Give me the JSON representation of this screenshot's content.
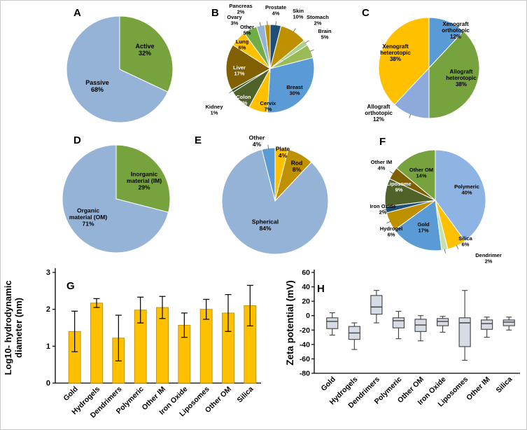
{
  "figure": {
    "background": "#ffffff",
    "panel_letters": [
      "A",
      "B",
      "C",
      "D",
      "E",
      "F",
      "G",
      "H"
    ]
  },
  "chart_data": [
    {
      "id": "A",
      "type": "pie",
      "slices": [
        {
          "label": "Active",
          "pct": 32,
          "color": "#77A33E"
        },
        {
          "label": "Passive",
          "pct": 68,
          "color": "#95B3D7"
        }
      ]
    },
    {
      "id": "B",
      "type": "pie",
      "slices": [
        {
          "label": "Prostate",
          "pct": 4,
          "color": "#1F4E79"
        },
        {
          "label": "Skin",
          "pct": 10,
          "color": "#BF9000"
        },
        {
          "label": "Stomach",
          "pct": 2,
          "color": "#A9D18E"
        },
        {
          "label": "Brain",
          "pct": 5,
          "color": "#9BBB59"
        },
        {
          "label": "Breast",
          "pct": 30,
          "color": "#5B9BD5"
        },
        {
          "label": "Cervix",
          "pct": 7,
          "color": "#FFC000"
        },
        {
          "label": "Colon",
          "pct": 8,
          "color": "#4F6228"
        },
        {
          "label": "Kidney",
          "pct": 1,
          "color": "#375623"
        },
        {
          "label": "Liver",
          "pct": 17,
          "color": "#806000"
        },
        {
          "label": "Lung",
          "pct": 6,
          "color": "#FFC000"
        },
        {
          "label": "Other",
          "pct": 5,
          "color": "#70AD47"
        },
        {
          "label": "Ovary",
          "pct": 3,
          "color": "#95B3D7"
        },
        {
          "label": "Pancreas",
          "pct": 2,
          "color": "#BF9000"
        }
      ]
    },
    {
      "id": "C",
      "type": "pie",
      "slices": [
        {
          "label": "Xenograft orthotopic",
          "pct": 12,
          "color": "#5B9BD5"
        },
        {
          "label": "Allograft heterotopic",
          "pct": 38,
          "color": "#77A33E"
        },
        {
          "label": "Allograft orthotopic",
          "pct": 12,
          "color": "#8EAADB"
        },
        {
          "label": "Xenograft heterotopic",
          "pct": 38,
          "color": "#FFC000"
        }
      ]
    },
    {
      "id": "D",
      "type": "pie",
      "slices": [
        {
          "label": "Inorganic material (IM)",
          "pct": 29,
          "color": "#77A33E"
        },
        {
          "label": "Organic material (OM)",
          "pct": 71,
          "color": "#95B3D7"
        }
      ]
    },
    {
      "id": "E",
      "type": "pie",
      "slices": [
        {
          "label": "Plate",
          "pct": 4,
          "color": "#FFC000"
        },
        {
          "label": "Rod",
          "pct": 8,
          "color": "#BF9000"
        },
        {
          "label": "Spherical",
          "pct": 84,
          "color": "#95B3D7"
        },
        {
          "label": "Other",
          "pct": 4,
          "color": "#5B9BD5"
        }
      ]
    },
    {
      "id": "F",
      "type": "pie",
      "slices": [
        {
          "label": "Polymeric",
          "pct": 40,
          "color": "#8DB4E2"
        },
        {
          "label": "Silica",
          "pct": 6,
          "color": "#FFC000"
        },
        {
          "label": "Dendrimer",
          "pct": 2,
          "color": "#C5E0B4"
        },
        {
          "label": "Gold",
          "pct": 17,
          "color": "#5B9BD5"
        },
        {
          "label": "Hydrogel",
          "pct": 6,
          "color": "#BF9000"
        },
        {
          "label": "Iron Oxide",
          "pct": 2,
          "color": "#1F4E79"
        },
        {
          "label": "Liposome",
          "pct": 9,
          "color": "#4F6228"
        },
        {
          "label": "Other IM",
          "pct": 4,
          "color": "#7F6000"
        },
        {
          "label": "Other OM",
          "pct": 14,
          "color": "#77A33E"
        }
      ]
    },
    {
      "id": "G",
      "type": "bar",
      "ylabel": "Log10- hydrodynamic diameter (nm)",
      "ylabel_lines": [
        "Log10- hydrodynamic",
        "diameter (nm)"
      ],
      "ylim": [
        0,
        3
      ],
      "yticks": [
        0,
        1,
        2,
        3
      ],
      "bar_color": "#FFC000",
      "categories": [
        "Gold",
        "Hydrogels",
        "Dendrimers",
        "Polymeric",
        "Other IM",
        "Iron Oxide",
        "Liposomes",
        "Other OM",
        "Silica"
      ],
      "values": [
        1.4,
        2.17,
        1.22,
        1.98,
        2.05,
        1.57,
        2.0,
        1.9,
        2.1
      ],
      "errors": [
        0.55,
        0.12,
        0.62,
        0.35,
        0.3,
        0.33,
        0.27,
        0.5,
        0.55
      ]
    },
    {
      "id": "H",
      "type": "box",
      "ylabel": "Zeta potential (mV)",
      "ylim": [
        -80,
        60
      ],
      "yticks": [
        60,
        40,
        20,
        0,
        -20,
        -40,
        -60,
        -80
      ],
      "box_fill": "#D6DCE5",
      "categories": [
        "Gold",
        "Hydrogels",
        "Dendrimers",
        "Polymeric",
        "Other OM",
        "Iron Oxide",
        "Liposomes",
        "Other IM",
        "Silica"
      ],
      "boxes": [
        {
          "min": -27,
          "q1": -18,
          "median": -8,
          "q3": -3,
          "max": 4
        },
        {
          "min": -47,
          "q1": -33,
          "median": -24,
          "q3": -15,
          "max": -10
        },
        {
          "min": -10,
          "q1": 2,
          "median": 12,
          "q3": 28,
          "max": 35
        },
        {
          "min": -32,
          "q1": -17,
          "median": -7,
          "q3": -3,
          "max": 6
        },
        {
          "min": -35,
          "q1": -22,
          "median": -13,
          "q3": -5,
          "max": 0
        },
        {
          "min": -23,
          "q1": -14,
          "median": -8,
          "q3": -4,
          "max": -1
        },
        {
          "min": -62,
          "q1": -43,
          "median": -10,
          "q3": -3,
          "max": 35
        },
        {
          "min": -30,
          "q1": -19,
          "median": -11,
          "q3": -6,
          "max": -2
        },
        {
          "min": -20,
          "q1": -14,
          "median": -9,
          "q3": -6,
          "max": -2
        }
      ]
    }
  ]
}
